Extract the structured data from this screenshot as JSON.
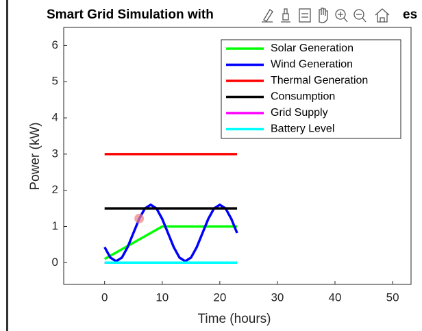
{
  "chart_data": {
    "type": "line",
    "title": "Smart Grid Simulation with",
    "title_end": "es",
    "xlabel": "Time (hours)",
    "ylabel": "Power (kW)",
    "x": [
      0,
      1,
      2,
      3,
      4,
      5,
      6,
      7,
      8,
      9,
      10,
      11,
      12,
      13,
      14,
      15,
      16,
      17,
      18,
      19,
      20,
      21,
      22,
      23
    ],
    "series": [
      {
        "name": "Solar Generation",
        "color": "#00ff00",
        "values": [
          0.1,
          0.19,
          0.28,
          0.37,
          0.46,
          0.55,
          0.64,
          0.73,
          0.82,
          0.91,
          1,
          1,
          1,
          1,
          1,
          1,
          1,
          1,
          1,
          1,
          1,
          1,
          1,
          1
        ]
      },
      {
        "name": "Wind Generation",
        "color": "#0000ff",
        "values": [
          0.43,
          0.14,
          0.04,
          0.14,
          0.43,
          0.82,
          1.21,
          1.5,
          1.6,
          1.5,
          1.21,
          0.82,
          0.43,
          0.14,
          0.04,
          0.14,
          0.43,
          0.82,
          1.21,
          1.5,
          1.6,
          1.5,
          1.21,
          0.82
        ]
      },
      {
        "name": "Thermal Generation",
        "color": "#ff0000",
        "values": [
          3,
          3,
          3,
          3,
          3,
          3,
          3,
          3,
          3,
          3,
          3,
          3,
          3,
          3,
          3,
          3,
          3,
          3,
          3,
          3,
          3,
          3,
          3,
          3
        ]
      },
      {
        "name": "Consumption",
        "color": "#000000",
        "values": [
          1.5,
          1.5,
          1.5,
          1.5,
          1.5,
          1.5,
          1.5,
          1.5,
          1.5,
          1.5,
          1.5,
          1.5,
          1.5,
          1.5,
          1.5,
          1.5,
          1.5,
          1.5,
          1.5,
          1.5,
          1.5,
          1.5,
          1.5,
          1.5
        ]
      },
      {
        "name": "Grid Supply",
        "color": "#ff00ff",
        "values": [
          0,
          0,
          0,
          0,
          0,
          0,
          0,
          0,
          0,
          0,
          0,
          0,
          0,
          0,
          0,
          0,
          0,
          0,
          0,
          0,
          0,
          0,
          0,
          0
        ]
      },
      {
        "name": "Battery Level",
        "color": "#00ffff",
        "values": [
          0,
          0,
          0,
          0,
          0,
          0,
          0,
          0,
          0,
          0,
          0,
          0,
          0,
          0,
          0,
          0,
          0,
          0,
          0,
          0,
          0,
          0,
          0,
          0
        ]
      }
    ],
    "marker": {
      "x": 6,
      "y": 1.22,
      "color": "#f08080"
    },
    "xlim": [
      -7.1,
      53.2
    ],
    "xticks": [
      0,
      10,
      20,
      30,
      40,
      50
    ],
    "ylim": [
      -0.6,
      6.5
    ],
    "yticks": [
      0,
      1,
      2,
      3,
      4,
      5,
      6
    ],
    "legend": "northeast"
  }
}
